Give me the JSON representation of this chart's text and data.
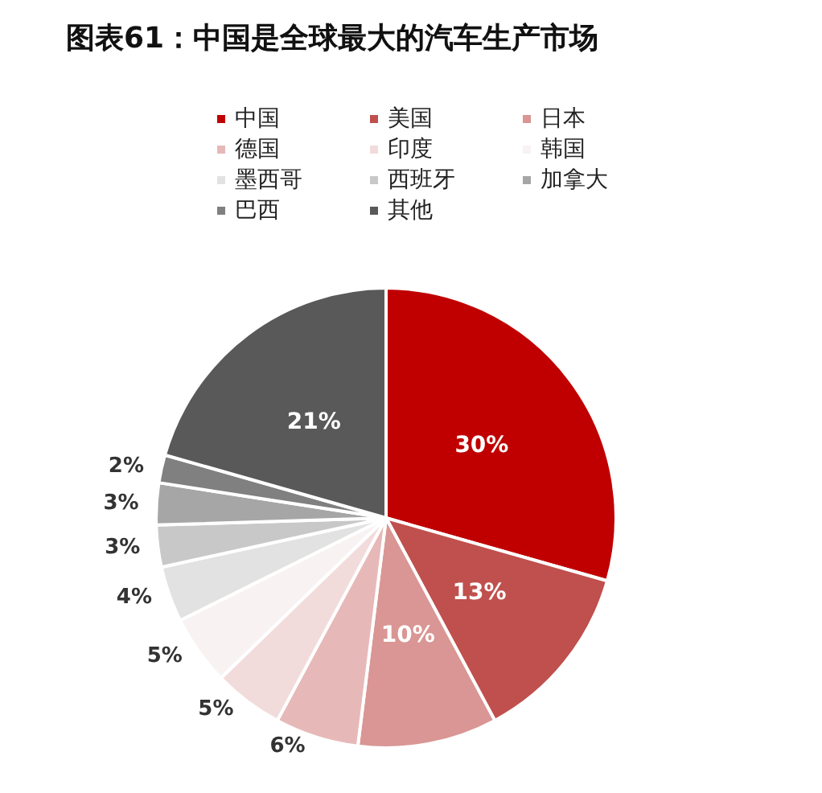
{
  "chart_data": {
    "type": "pie",
    "title": "图表61：中国是全球最大的汽车生产市场",
    "categories": [
      "中国",
      "美国",
      "日本",
      "德国",
      "印度",
      "韩国",
      "墨西哥",
      "西班牙",
      "加拿大",
      "巴西",
      "其他"
    ],
    "values": [
      30,
      13,
      10,
      6,
      5,
      5,
      4,
      3,
      3,
      2,
      21
    ],
    "colors": [
      "#c00000",
      "#c0504d",
      "#d99694",
      "#e6b9b8",
      "#f2dcdb",
      "#f8f2f2",
      "#e2e2e2",
      "#c8c8c8",
      "#a6a6a6",
      "#808080",
      "#595959"
    ],
    "value_labels": [
      "30%",
      "13%",
      "10%",
      "6%",
      "5%",
      "5%",
      "4%",
      "3%",
      "3%",
      "2%",
      "21%"
    ],
    "legend": "top"
  }
}
